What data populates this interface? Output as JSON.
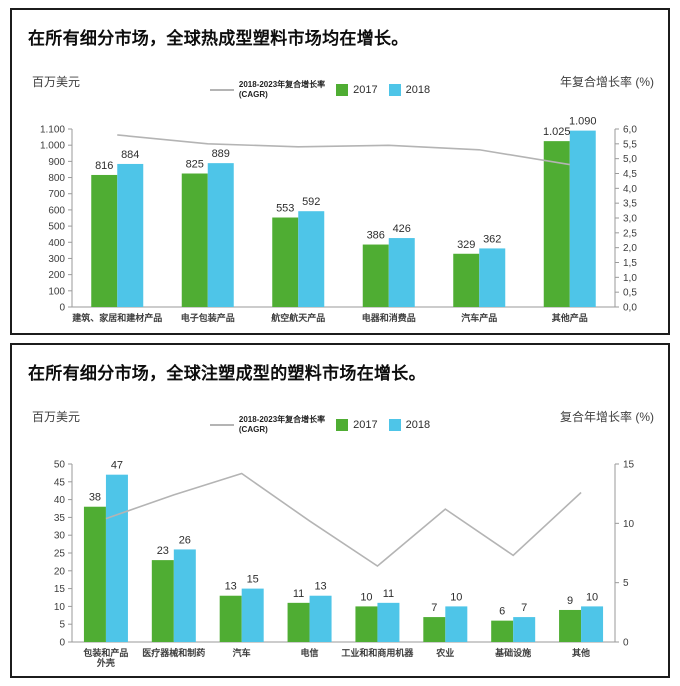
{
  "colors": {
    "green": "#4fad33",
    "blue": "#4ec5e8",
    "line": "#b4b4b4",
    "axis": "#9a9a9a",
    "tick_text": "#3c3c3c",
    "value_text": "#2e2e2e",
    "category_text": "#3f3f3f",
    "border": "#1c1c1c"
  },
  "chart_data": [
    {
      "type": "bar",
      "title": "在所有细分市场，全球热成型塑料市场均在增长。",
      "left_axis_title": "百万美元",
      "right_axis_title": "年复合增长率 (%)",
      "legend": {
        "cagr_label_line1": "2018-2023年复合增长率",
        "cagr_label_line2": "(CAGR)",
        "y2017": "2017",
        "y2018": "2018"
      },
      "categories": [
        "建筑、家居和建材产品",
        "电子包装产品",
        "航空航天产品",
        "电器和消费品",
        "汽车产品",
        "其他产品"
      ],
      "series": [
        {
          "name": "2017",
          "values": [
            816,
            825,
            553,
            386,
            329,
            1025
          ],
          "labels": [
            "816",
            "825",
            "553",
            "386",
            "329",
            "1.025"
          ]
        },
        {
          "name": "2018",
          "values": [
            884,
            889,
            592,
            426,
            362,
            1090
          ],
          "labels": [
            "884",
            "889",
            "592",
            "426",
            "362",
            "1.090"
          ]
        }
      ],
      "cagr_line": {
        "name": "2018-2023年复合增长率 (CAGR)",
        "values": [
          5.8,
          5.5,
          5.4,
          5.45,
          5.3,
          4.8
        ]
      },
      "left_axis": {
        "min": 0,
        "max": 1100,
        "step": 100,
        "tick_labels": [
          "0",
          "100",
          "200",
          "300",
          "400",
          "500",
          "600",
          "700",
          "800",
          "900",
          "1.000",
          "1.100"
        ]
      },
      "right_axis": {
        "min": 0,
        "max": 6,
        "step": 0.5,
        "tick_labels": [
          "0,0",
          "0,5",
          "1,0",
          "1,5",
          "2,0",
          "2,5",
          "3,0",
          "3,5",
          "4,0",
          "4,5",
          "5,0",
          "5,5",
          "6,0"
        ]
      },
      "grid": false,
      "legend_position": "top-center"
    },
    {
      "type": "bar",
      "title": "在所有细分市场，全球注塑成型的塑料市场在增长。",
      "left_axis_title": "百万美元",
      "right_axis_title": "复合年增长率 (%)",
      "legend": {
        "cagr_label_line1": "2018-2023年复合增长率",
        "cagr_label_line2": "(CAGR)",
        "y2017": "2017",
        "y2018": "2018"
      },
      "categories": [
        "包装和产品\n外壳",
        "医疗器械和制药",
        "汽车",
        "电信",
        "工业和和商用机器",
        "农业",
        "基础设施",
        "其他"
      ],
      "series": [
        {
          "name": "2017",
          "values": [
            38,
            23,
            13,
            11,
            10,
            7,
            6,
            9
          ],
          "labels": [
            "38",
            "23",
            "13",
            "11",
            "10",
            "7",
            "6",
            "9"
          ]
        },
        {
          "name": "2018",
          "values": [
            47,
            26,
            15,
            13,
            11,
            10,
            7,
            10
          ],
          "labels": [
            "47",
            "26",
            "15",
            "13",
            "11",
            "10",
            "7",
            "10"
          ]
        }
      ],
      "cagr_line": {
        "name": "2018-2023年复合增长率 (CAGR)",
        "values": [
          10.4,
          12.4,
          14.2,
          10.2,
          6.4,
          11.2,
          7.3,
          12.6
        ]
      },
      "left_axis": {
        "min": 0,
        "max": 50,
        "step": 5,
        "tick_labels": [
          "0",
          "5",
          "10",
          "15",
          "20",
          "25",
          "30",
          "35",
          "40",
          "45",
          "50"
        ]
      },
      "right_axis": {
        "min": 0,
        "max": 15,
        "step": 5,
        "tick_labels": [
          "0",
          "5",
          "10",
          "15"
        ]
      },
      "grid": false,
      "legend_position": "top-center"
    }
  ]
}
